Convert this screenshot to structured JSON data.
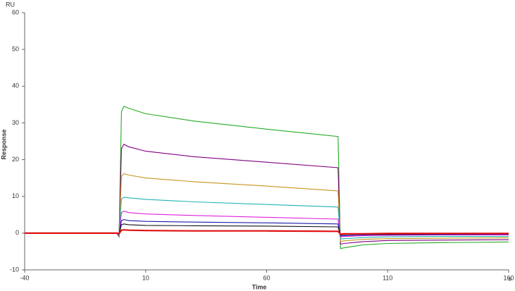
{
  "chart_data": {
    "type": "line",
    "x_label": "Time",
    "y_label": "Response",
    "x_unit": "s",
    "y_unit": "RU",
    "x": [
      -40,
      -2,
      -1,
      0,
      1,
      3,
      10,
      30,
      60,
      89.5,
      90.5,
      92,
      100,
      110,
      130,
      160
    ],
    "series": [
      {
        "color": "#22aa22",
        "values": [
          0,
          0,
          -1,
          33,
          34.5,
          34.0,
          32.5,
          30.5,
          28.3,
          26.3,
          -4.2,
          -4.0,
          -3.2,
          -2.8,
          -2.6,
          -2.4
        ]
      },
      {
        "color": "#800080",
        "values": [
          0,
          0,
          -0.8,
          23,
          24.2,
          23.5,
          22.3,
          20.8,
          19.3,
          17.8,
          -3.0,
          -2.8,
          -2.3,
          -2.0,
          -1.9,
          -1.8
        ]
      },
      {
        "color": "#c8961e",
        "values": [
          0,
          0,
          -0.6,
          15.5,
          16.2,
          15.8,
          15.0,
          14.0,
          12.8,
          11.5,
          -2.3,
          -2.1,
          -1.7,
          -1.5,
          -1.4,
          -1.3
        ]
      },
      {
        "color": "#20b2b2",
        "values": [
          0,
          0,
          -0.5,
          9.3,
          9.8,
          9.6,
          9.2,
          8.5,
          7.8,
          7.1,
          -1.6,
          -1.5,
          -1.2,
          -1.0,
          -0.9,
          -0.9
        ]
      },
      {
        "color": "#e020e0",
        "values": [
          0,
          0,
          -0.4,
          5.6,
          6.0,
          5.6,
          5.2,
          4.8,
          4.3,
          3.8,
          -1.0,
          -0.9,
          -0.7,
          -0.6,
          -0.5,
          -0.5
        ]
      },
      {
        "color": "#1a1aaa",
        "values": [
          0,
          0,
          -0.3,
          3.4,
          3.7,
          3.4,
          3.2,
          3.0,
          2.8,
          2.5,
          -0.8,
          -0.7,
          -0.5,
          -0.4,
          -0.4,
          -0.3
        ]
      },
      {
        "color": "#111111",
        "values": [
          0,
          0,
          -0.2,
          2.3,
          2.5,
          2.3,
          2.1,
          2.0,
          1.9,
          1.7,
          -0.5,
          -0.4,
          -0.3,
          -0.3,
          -0.2,
          -0.2
        ]
      },
      {
        "color": "#e01010",
        "values": [
          0,
          0,
          -0.1,
          0.8,
          0.9,
          0.8,
          0.7,
          0.6,
          0.6,
          0.5,
          -0.3,
          -0.2,
          -0.2,
          -0.1,
          -0.1,
          -0.1
        ]
      }
    ],
    "xlim": [
      -40,
      160
    ],
    "xticks": [
      -40,
      10,
      60,
      110,
      160
    ],
    "ylim": [
      -10,
      60
    ],
    "yticks": [
      -10,
      0,
      10,
      20,
      30,
      40,
      50,
      60
    ]
  }
}
